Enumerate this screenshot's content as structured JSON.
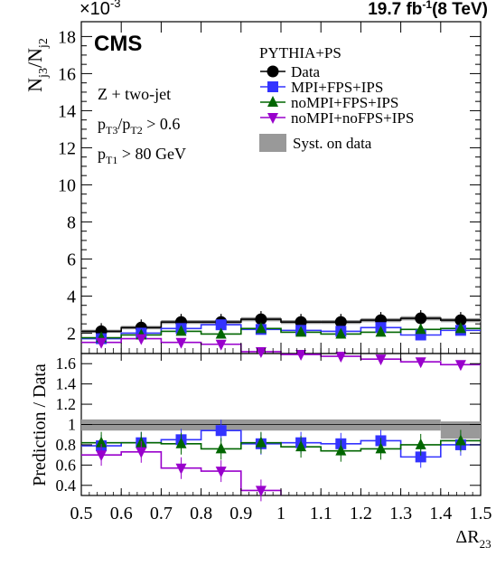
{
  "header": {
    "experiment": "CMS",
    "lumi": "19.7 fb",
    "lumi_exp": "-1",
    "energy": "(8 TeV)",
    "scale_base": "×10",
    "scale_exp": "-3"
  },
  "annotations": {
    "process": "Z + two-jet",
    "cut1": {
      "p": "p",
      "s1": "T3",
      "mid": "/p",
      "s2": "T2",
      "rest": " > 0.6"
    },
    "cut2": {
      "p": "p",
      "s1": "T1",
      "rest": " > 80 GeV"
    }
  },
  "legend": {
    "title": "PYTHIA+PS",
    "syst": "Syst. on data"
  },
  "colors": {
    "data": "#000000",
    "mpi_fps_ips": "#3333ff",
    "nompi_fps_ips": "#006600",
    "nompi_nofps_ips": "#9900cc",
    "syst": "#999999"
  },
  "chart_data": [
    {
      "type": "scatter",
      "panel": "main",
      "ylabel": {
        "n": "N",
        "s1": "j3",
        "mid": "/N",
        "s2": "j2"
      },
      "yscale_note": "×10^-3",
      "xlim": [
        0.5,
        1.5
      ],
      "ylim": [
        0.9,
        18.8
      ],
      "yticks": [
        "2",
        "4",
        "6",
        "8",
        "10",
        "12",
        "14",
        "16",
        "18"
      ],
      "x": [
        0.55,
        0.65,
        0.75,
        0.85,
        0.95,
        1.05,
        1.15,
        1.25,
        1.35,
        1.45
      ],
      "series": [
        {
          "name": "Data",
          "marker": "circle",
          "color": "#000000",
          "values": [
            2.1,
            2.3,
            2.6,
            2.6,
            2.75,
            2.6,
            2.6,
            2.7,
            2.8,
            2.7
          ]
        },
        {
          "name": "MPI+FPS+IPS",
          "marker": "square",
          "color": "#3333ff",
          "values": [
            1.7,
            2.0,
            2.25,
            2.45,
            2.2,
            2.15,
            2.1,
            2.3,
            1.9,
            2.15
          ]
        },
        {
          "name": "noMPI+FPS+IPS",
          "marker": "triangle-up",
          "color": "#006600",
          "values": [
            1.75,
            1.9,
            2.1,
            1.95,
            2.25,
            2.05,
            1.95,
            2.05,
            2.2,
            2.25
          ]
        },
        {
          "name": "noMPI+noFPS+IPS",
          "marker": "triangle-down",
          "color": "#9900cc",
          "values": [
            1.5,
            1.7,
            1.5,
            1.4,
            1.0,
            0.85,
            0.75,
            0.6,
            0.45,
            0.3
          ]
        }
      ],
      "syst_band": "Syst. on data"
    },
    {
      "type": "scatter",
      "panel": "ratio",
      "ylabel": "Prediction / Data",
      "xlabel": {
        "base": "ΔR",
        "sub": "23"
      },
      "xlim": [
        0.5,
        1.5
      ],
      "ylim": [
        0.3,
        1.7
      ],
      "xticks": [
        "0.5",
        "0.6",
        "0.7",
        "0.8",
        "0.9",
        "1",
        "1.1",
        "1.2",
        "1.3",
        "1.4",
        "1.5"
      ],
      "yticks": [
        "0.4",
        "0.6",
        "0.8",
        "1",
        "1.2",
        "1.4",
        "1.6"
      ],
      "x": [
        0.55,
        0.65,
        0.75,
        0.85,
        0.95,
        1.05,
        1.15,
        1.25,
        1.35,
        1.45
      ],
      "series": [
        {
          "name": "MPI+FPS+IPS",
          "marker": "square",
          "color": "#3333ff",
          "values": [
            0.79,
            0.82,
            0.85,
            0.94,
            0.81,
            0.82,
            0.81,
            0.84,
            0.68,
            0.8
          ]
        },
        {
          "name": "noMPI+FPS+IPS",
          "marker": "triangle-up",
          "color": "#006600",
          "values": [
            0.82,
            0.82,
            0.81,
            0.76,
            0.82,
            0.78,
            0.74,
            0.76,
            0.8,
            0.84
          ]
        },
        {
          "name": "noMPI+noFPS+IPS",
          "marker": "triangle-down",
          "color": "#9900cc",
          "values": [
            0.7,
            0.73,
            0.57,
            0.54,
            0.35,
            null,
            null,
            null,
            null,
            null
          ]
        }
      ],
      "syst_band": [
        {
          "x": [
            0.5,
            1.4
          ],
          "y": [
            0.94,
            1.05
          ]
        },
        {
          "x": [
            1.4,
            1.5
          ],
          "y": [
            0.86,
            1.03
          ]
        }
      ]
    }
  ]
}
